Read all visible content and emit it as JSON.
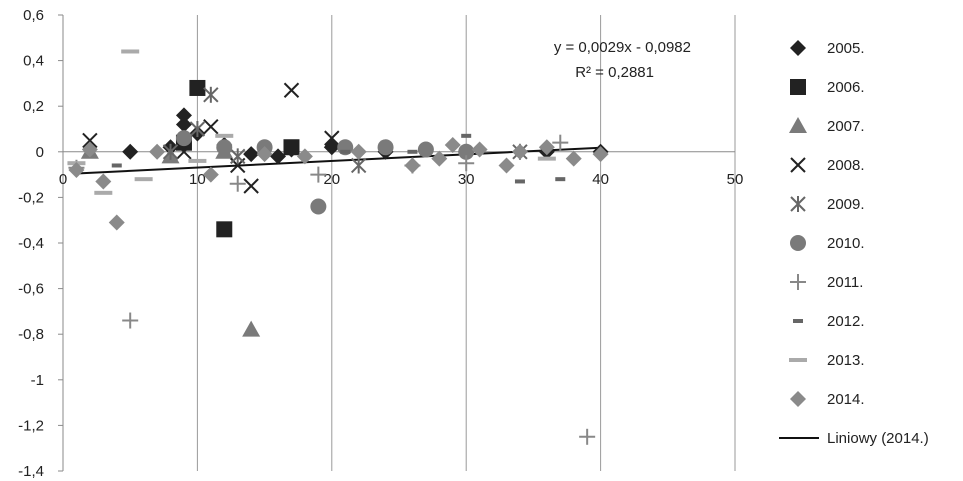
{
  "chart_data": {
    "type": "scatter",
    "title": "",
    "xlabel": "",
    "ylabel": "",
    "xlim": [
      0,
      50
    ],
    "ylim": [
      -1.4,
      0.6
    ],
    "x_ticks": [
      "0",
      "10",
      "20",
      "30",
      "40",
      "50"
    ],
    "y_ticks": [
      "0,6",
      "0,4",
      "0,2",
      "0",
      "-0,2",
      "-0,4",
      "-0,6",
      "-0,8",
      "-1",
      "-1,2",
      "-1,4"
    ],
    "grid": "vertical",
    "legend_position": "right",
    "series": [
      {
        "name": "2005.",
        "marker": "diamond",
        "color": "#222222",
        "points": [
          [
            9,
            0.16
          ],
          [
            9,
            0.12
          ],
          [
            10,
            0.08
          ],
          [
            8,
            0.02
          ],
          [
            12,
            0.03
          ],
          [
            14,
            -0.01
          ],
          [
            17,
            0.01
          ],
          [
            20,
            0.02
          ],
          [
            24,
            0.0
          ],
          [
            30,
            0.0
          ],
          [
            36,
            0.0
          ],
          [
            40,
            0.0
          ],
          [
            5,
            0.0
          ],
          [
            16,
            -0.02
          ]
        ]
      },
      {
        "name": "2006.",
        "marker": "square",
        "color": "#222222",
        "points": [
          [
            10,
            0.28
          ],
          [
            12,
            -0.34
          ],
          [
            17,
            0.02
          ],
          [
            9,
            0.04
          ]
        ]
      },
      {
        "name": "2007.",
        "marker": "triangle",
        "color": "#7a7a7a",
        "points": [
          [
            14,
            -0.78
          ],
          [
            2,
            0.0
          ],
          [
            8,
            -0.02
          ],
          [
            12,
            0.0
          ]
        ]
      },
      {
        "name": "2008.",
        "marker": "x",
        "color": "#222222",
        "points": [
          [
            2,
            0.05
          ],
          [
            17,
            0.27
          ],
          [
            14,
            -0.15
          ],
          [
            11,
            0.11
          ],
          [
            20,
            0.06
          ],
          [
            9,
            0.0
          ],
          [
            13,
            -0.06
          ]
        ]
      },
      {
        "name": "2009.",
        "marker": "asterisk",
        "color": "#666666",
        "points": [
          [
            11,
            0.25
          ],
          [
            10,
            0.1
          ],
          [
            22,
            -0.06
          ],
          [
            13,
            -0.02
          ],
          [
            8,
            0.0
          ],
          [
            34,
            0.0
          ]
        ]
      },
      {
        "name": "2010.",
        "marker": "circle",
        "color": "#7a7a7a",
        "points": [
          [
            19,
            -0.24
          ],
          [
            9,
            0.06
          ],
          [
            15,
            0.02
          ],
          [
            24,
            0.02
          ],
          [
            27,
            0.01
          ],
          [
            30,
            0.0
          ],
          [
            12,
            0.02
          ],
          [
            21,
            0.02
          ]
        ]
      },
      {
        "name": "2011.",
        "marker": "plus",
        "color": "#888888",
        "points": [
          [
            5,
            -0.74
          ],
          [
            39,
            -1.25
          ],
          [
            13,
            -0.14
          ],
          [
            37,
            0.04
          ],
          [
            1,
            -0.07
          ],
          [
            19,
            -0.1
          ],
          [
            30,
            -0.05
          ],
          [
            26,
            -0.06
          ]
        ]
      },
      {
        "name": "2012.",
        "marker": "dash",
        "color": "#666666",
        "points": [
          [
            30,
            0.07
          ],
          [
            34,
            -0.13
          ],
          [
            37,
            -0.12
          ],
          [
            4,
            -0.06
          ],
          [
            21,
            0.0
          ],
          [
            26,
            0.0
          ]
        ]
      },
      {
        "name": "2013.",
        "marker": "longdash",
        "color": "#aaaaaa",
        "points": [
          [
            5,
            0.44
          ],
          [
            12,
            0.07
          ],
          [
            3,
            -0.18
          ],
          [
            6,
            -0.12
          ],
          [
            10,
            -0.04
          ],
          [
            36,
            -0.03
          ],
          [
            1,
            -0.05
          ]
        ]
      },
      {
        "name": "2014.",
        "marker": "diamond",
        "color": "#8a8a8a",
        "points": [
          [
            4,
            -0.31
          ],
          [
            3,
            -0.13
          ],
          [
            1,
            -0.08
          ],
          [
            7,
            0.0
          ],
          [
            11,
            -0.1
          ],
          [
            15,
            -0.01
          ],
          [
            18,
            -0.02
          ],
          [
            22,
            0.0
          ],
          [
            26,
            -0.06
          ],
          [
            28,
            -0.03
          ],
          [
            29,
            0.03
          ],
          [
            31,
            0.01
          ],
          [
            33,
            -0.06
          ],
          [
            34,
            0.0
          ],
          [
            36,
            0.02
          ],
          [
            38,
            -0.03
          ],
          [
            40,
            -0.01
          ],
          [
            2,
            0.01
          ]
        ]
      }
    ],
    "trendline": {
      "name": "Liniowy (2014.)",
      "equation": "y = 0,0029x - 0,0982",
      "r_squared": "R² = 0,2881",
      "slope": 0.0029,
      "intercept": -0.0982,
      "x_range": [
        1,
        40
      ],
      "color": "#111111"
    }
  }
}
